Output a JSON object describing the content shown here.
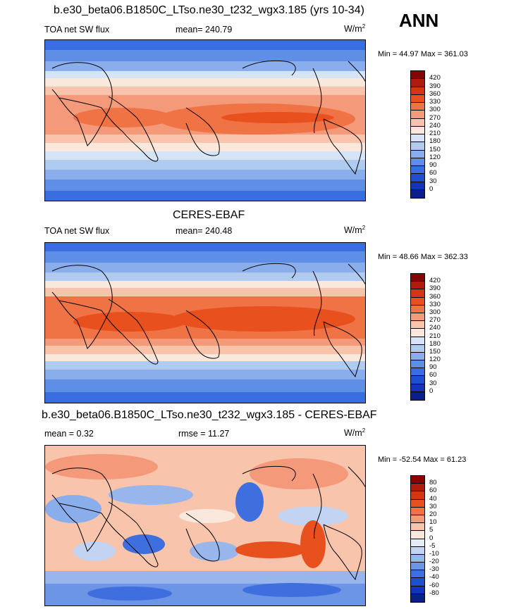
{
  "season": "ANN",
  "panels": [
    {
      "id": "model",
      "title": "b.e30_beta06.B1850C_LTso.ne30_t232_wgx3.185 (yrs 10-34)",
      "left_label": "TOA net SW flux",
      "center_label": "mean= 240.79",
      "units_base": "W/m",
      "units_exp": "2",
      "minmax": "Min =  44.97 Max = 361.03",
      "levels": [
        "420",
        "390",
        "360",
        "330",
        "300",
        "270",
        "240",
        "210",
        "180",
        "150",
        "120",
        "90",
        "60",
        "30",
        "0"
      ],
      "colors": [
        "#8b0000",
        "#b01a0c",
        "#d43512",
        "#e8501e",
        "#f07346",
        "#f4997a",
        "#f8c4ac",
        "#fbe8dc",
        "#d6e4f7",
        "#b0cbf0",
        "#8aaeeb",
        "#5f8ee6",
        "#3a6ee0",
        "#1f4ed0",
        "#1333b8",
        "#0a1f8c"
      ]
    },
    {
      "id": "obs",
      "title": "CERES-EBAF",
      "left_label": "TOA net SW flux",
      "center_label": "mean= 240.48",
      "units_base": "W/m",
      "units_exp": "2",
      "minmax": "Min =  48.66 Max = 362.33",
      "levels": [
        "420",
        "390",
        "360",
        "330",
        "300",
        "270",
        "240",
        "210",
        "180",
        "150",
        "120",
        "90",
        "60",
        "30",
        "0"
      ],
      "colors": [
        "#8b0000",
        "#b01a0c",
        "#d43512",
        "#e8501e",
        "#f07346",
        "#f4997a",
        "#f8c4ac",
        "#fbe8dc",
        "#d6e4f7",
        "#b0cbf0",
        "#8aaeeb",
        "#5f8ee6",
        "#3a6ee0",
        "#1f4ed0",
        "#1333b8",
        "#0a1f8c"
      ]
    },
    {
      "id": "diff",
      "title": "b.e30_beta06.B1850C_LTso.ne30_t232_wgx3.185 - CERES-EBAF",
      "left_label": "mean =   0.32",
      "center_label": "rmse =  11.27",
      "units_base": "W/m",
      "units_exp": "2",
      "minmax": "Min = -52.54 Max =  61.23",
      "levels": [
        "80",
        "60",
        "40",
        "30",
        "20",
        "10",
        "5",
        "0",
        "-5",
        "-10",
        "-20",
        "-30",
        "-40",
        "-60",
        "-80"
      ],
      "colors": [
        "#8b0000",
        "#b01a0c",
        "#d43512",
        "#e8501e",
        "#f07346",
        "#f4997a",
        "#f8c4ac",
        "#fbe8dc",
        "#e4ecf8",
        "#c2d4f2",
        "#98b6ec",
        "#6d95e6",
        "#3f6fde",
        "#1f4ed0",
        "#1333b8",
        "#0a1f8c"
      ]
    }
  ]
}
